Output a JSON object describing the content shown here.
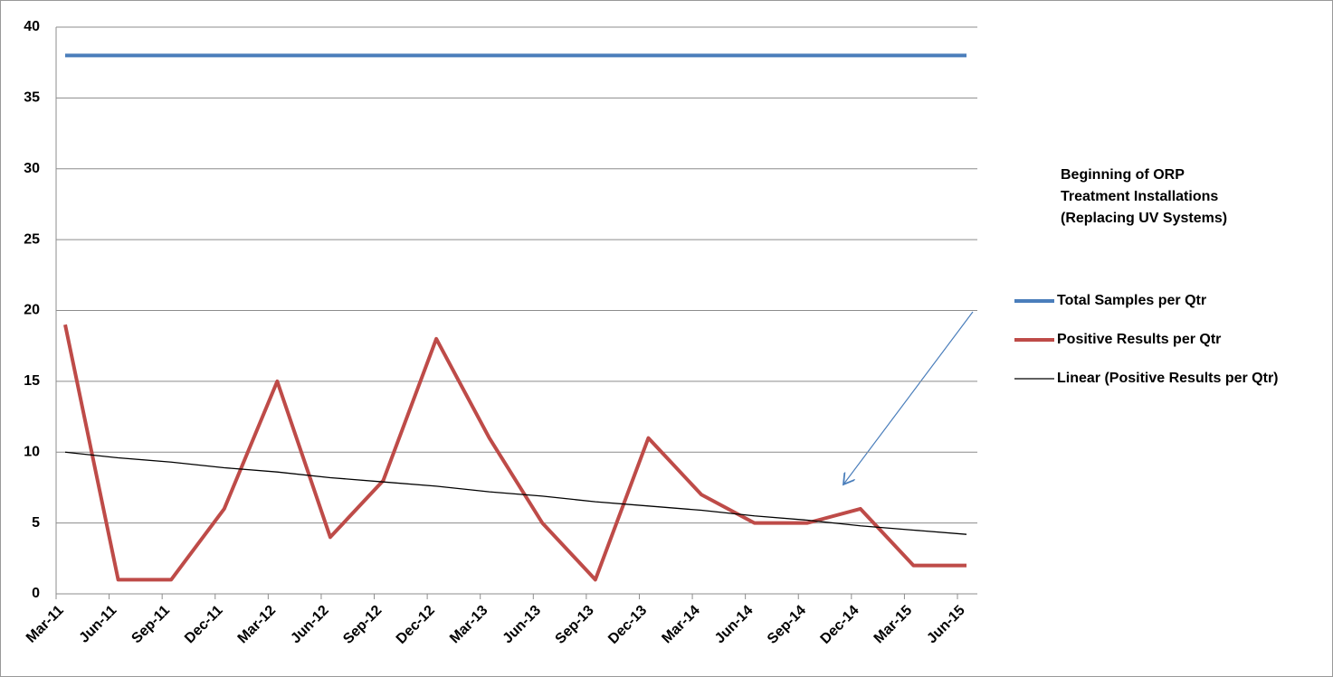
{
  "chart_data": {
    "type": "line",
    "categories": [
      "Mar-11",
      "Jun-11",
      "Sep-11",
      "Dec-11",
      "Mar-12",
      "Jun-12",
      "Sep-12",
      "Dec-12",
      "Mar-13",
      "Jun-13",
      "Sep-13",
      "Dec-13",
      "Mar-14",
      "Jun-14",
      "Sep-14",
      "Dec-14",
      "Mar-15",
      "Jun-15"
    ],
    "series": [
      {
        "name": "Total Samples per Qtr",
        "color": "#4a7ebb",
        "values": [
          38,
          38,
          38,
          38,
          38,
          38,
          38,
          38,
          38,
          38,
          38,
          38,
          38,
          38,
          38,
          38,
          38,
          38
        ]
      },
      {
        "name": "Positive Results per Qtr",
        "color": "#be4b48",
        "values": [
          19,
          1,
          1,
          6,
          15,
          4,
          8,
          18,
          11,
          5,
          1,
          11,
          7,
          5,
          5,
          6,
          2,
          2
        ]
      },
      {
        "name": "Linear (Positive Results per Qtr)",
        "color": "#000000",
        "values": [
          10.0,
          9.6,
          9.3,
          8.9,
          8.6,
          8.2,
          7.9,
          7.6,
          7.2,
          6.9,
          6.5,
          6.2,
          5.9,
          5.5,
          5.2,
          4.8,
          4.5,
          4.2
        ]
      }
    ],
    "ylim": [
      0,
      40
    ],
    "yticks": [
      0,
      5,
      10,
      15,
      20,
      25,
      30,
      35,
      40
    ],
    "grid": true,
    "annotation": [
      "Beginning of ORP",
      "Treatment Installations",
      "(Replacing UV Systems)"
    ]
  }
}
